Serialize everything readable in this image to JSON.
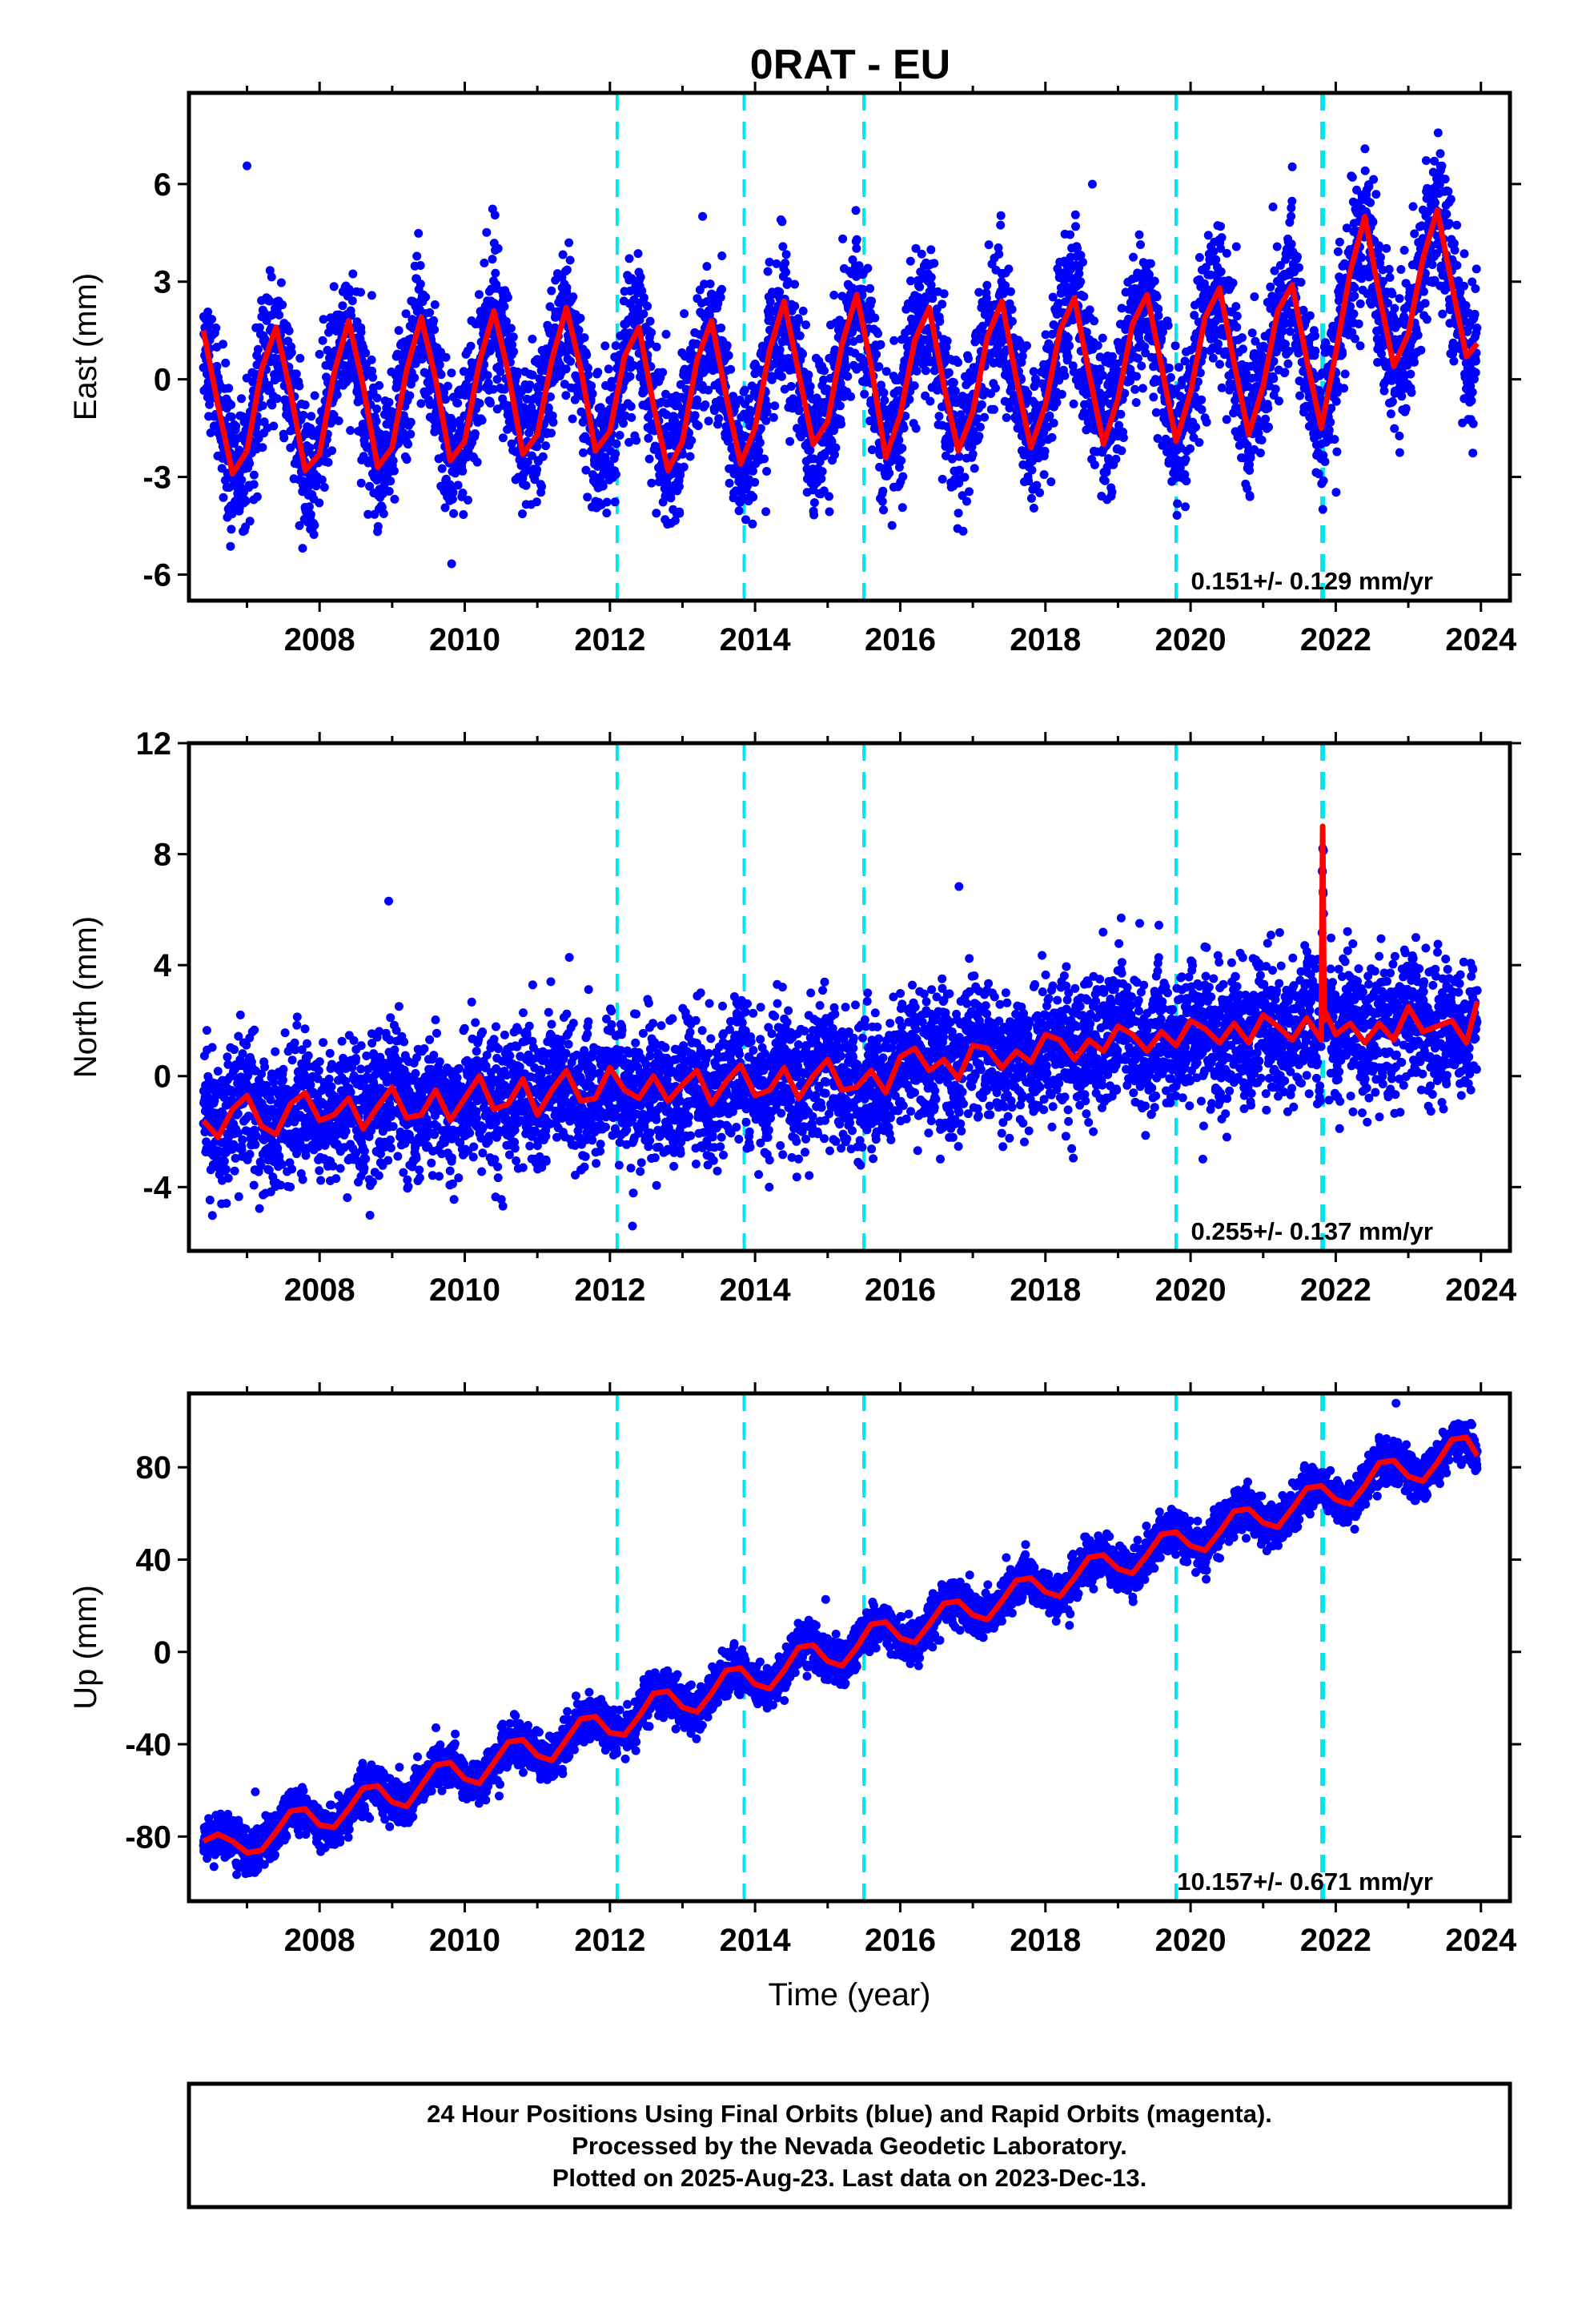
{
  "title": "0RAT - EU",
  "colors": {
    "data_points": "#0000ff",
    "model_fit": "#ff0000",
    "equipment_lines": "#00e5ee",
    "frame": "#000000"
  },
  "chart_data": [
    {
      "type": "scatter",
      "panel": "east",
      "ylabel": "East (mm)",
      "xlabel": "",
      "xlim": [
        2006.2,
        2024.4
      ],
      "ylim": [
        -6.8,
        8.8
      ],
      "x_ticks": [
        2008,
        2010,
        2012,
        2014,
        2016,
        2018,
        2020,
        2022,
        2024
      ],
      "x_tick_labels": [
        "2008",
        "2010",
        "2012",
        "2014",
        "2016",
        "2018",
        "2020",
        "2022",
        "2024"
      ],
      "y_ticks": [
        -6,
        -3,
        0,
        3,
        6
      ],
      "y_tick_labels": [
        "-6",
        "-3",
        "0",
        "3",
        "6"
      ],
      "rate_label": "0.151+/- 0.129 mm/yr",
      "rate_mm_per_yr": 0.151,
      "rate_sigma": 0.129,
      "x_start": 2006.4,
      "x_end": 2023.95,
      "offset_epochs": [
        2012.1,
        2013.85,
        2015.5,
        2019.8,
        2021.82
      ],
      "scatter_sigma_mm": 1.1,
      "series": [
        {
          "name": "Final Orbits (blue)",
          "kind": "points"
        },
        {
          "name": "model",
          "kind": "line",
          "x": [
            2006.4,
            2006.6,
            2006.8,
            2007.0,
            2007.2,
            2007.4,
            2007.6,
            2007.8,
            2008.0,
            2008.2,
            2008.4,
            2008.6,
            2008.8,
            2009.0,
            2009.2,
            2009.4,
            2009.6,
            2009.8,
            2010.0,
            2010.2,
            2010.4,
            2010.6,
            2010.8,
            2011.0,
            2011.2,
            2011.4,
            2011.6,
            2011.8,
            2012.0,
            2012.2,
            2012.4,
            2012.6,
            2012.8,
            2013.0,
            2013.2,
            2013.4,
            2013.6,
            2013.8,
            2014.0,
            2014.2,
            2014.4,
            2014.6,
            2014.8,
            2015.0,
            2015.2,
            2015.4,
            2015.6,
            2015.8,
            2016.0,
            2016.2,
            2016.4,
            2016.6,
            2016.8,
            2017.0,
            2017.2,
            2017.4,
            2017.6,
            2017.8,
            2018.0,
            2018.2,
            2018.4,
            2018.6,
            2018.8,
            2019.0,
            2019.2,
            2019.4,
            2019.6,
            2019.8,
            2020.0,
            2020.2,
            2020.4,
            2020.6,
            2020.8,
            2021.0,
            2021.2,
            2021.4,
            2021.6,
            2021.8,
            2022.0,
            2022.2,
            2022.4,
            2022.6,
            2022.8,
            2023.0,
            2023.2,
            2023.4,
            2023.6,
            2023.8,
            2023.95
          ],
          "y": [
            1.5,
            -0.8,
            -2.9,
            -2.2,
            0.3,
            1.6,
            -0.4,
            -2.8,
            -2.3,
            0.2,
            1.8,
            -0.2,
            -2.7,
            -2.1,
            0.3,
            1.9,
            0.0,
            -2.5,
            -1.9,
            0.5,
            2.1,
            0.2,
            -2.3,
            -1.7,
            0.6,
            2.2,
            0.3,
            -2.2,
            -1.6,
            0.7,
            1.6,
            -0.8,
            -2.8,
            -1.9,
            0.6,
            1.8,
            -0.5,
            -2.6,
            -1.5,
            0.9,
            2.4,
            0.2,
            -2.0,
            -1.3,
            1.1,
            2.6,
            0.4,
            -2.4,
            -1.1,
            1.2,
            2.2,
            -0.2,
            -2.2,
            -1.0,
            1.3,
            2.4,
            0.0,
            -2.1,
            -0.8,
            1.5,
            2.5,
            0.2,
            -2.0,
            -0.6,
            1.7,
            2.6,
            0.4,
            -1.9,
            -0.4,
            1.9,
            2.8,
            0.5,
            -1.7,
            -0.2,
            2.1,
            2.9,
            0.6,
            -1.5,
            0.8,
            3.3,
            5.0,
            2.6,
            0.4,
            1.4,
            3.7,
            5.2,
            2.9,
            0.7,
            1.1
          ]
        }
      ]
    },
    {
      "type": "scatter",
      "panel": "north",
      "ylabel": "North (mm)",
      "xlabel": "",
      "xlim": [
        2006.2,
        2024.4
      ],
      "ylim": [
        -6.3,
        12.0
      ],
      "x_ticks": [
        2008,
        2010,
        2012,
        2014,
        2016,
        2018,
        2020,
        2022,
        2024
      ],
      "x_tick_labels": [
        "2008",
        "2010",
        "2012",
        "2014",
        "2016",
        "2018",
        "2020",
        "2022",
        "2024"
      ],
      "y_ticks": [
        -4,
        0,
        4,
        8,
        12
      ],
      "y_tick_labels": [
        "-4",
        "0",
        "4",
        "8",
        "12"
      ],
      "rate_label": "0.255+/- 0.137 mm/yr",
      "rate_mm_per_yr": 0.255,
      "rate_sigma": 0.137,
      "x_start": 2006.4,
      "x_end": 2023.95,
      "offset_epochs": [
        2012.1,
        2013.85,
        2015.5,
        2019.8,
        2021.82
      ],
      "scatter_sigma_mm": 1.2,
      "series": [
        {
          "name": "Final Orbits (blue)",
          "kind": "points"
        },
        {
          "name": "model",
          "kind": "line",
          "x": [
            2006.4,
            2006.6,
            2006.8,
            2007.0,
            2007.2,
            2007.4,
            2007.6,
            2007.8,
            2008.0,
            2008.2,
            2008.4,
            2008.6,
            2008.8,
            2009.0,
            2009.2,
            2009.4,
            2009.6,
            2009.8,
            2010.0,
            2010.2,
            2010.4,
            2010.6,
            2010.8,
            2011.0,
            2011.2,
            2011.4,
            2011.6,
            2011.8,
            2012.0,
            2012.2,
            2012.4,
            2012.6,
            2012.8,
            2013.0,
            2013.2,
            2013.4,
            2013.6,
            2013.8,
            2014.0,
            2014.2,
            2014.4,
            2014.6,
            2014.8,
            2015.0,
            2015.2,
            2015.4,
            2015.6,
            2015.8,
            2016.0,
            2016.2,
            2016.4,
            2016.6,
            2016.8,
            2017.0,
            2017.2,
            2017.4,
            2017.6,
            2017.8,
            2018.0,
            2018.2,
            2018.4,
            2018.6,
            2018.8,
            2019.0,
            2019.2,
            2019.4,
            2019.6,
            2019.8,
            2020.0,
            2020.2,
            2020.4,
            2020.6,
            2020.8,
            2021.0,
            2021.2,
            2021.4,
            2021.6,
            2021.8,
            2021.82,
            2021.84,
            2021.86,
            2022.0,
            2022.2,
            2022.4,
            2022.6,
            2022.8,
            2023.0,
            2023.2,
            2023.4,
            2023.6,
            2023.8,
            2023.95
          ],
          "y": [
            -1.6,
            -2.2,
            -1.2,
            -0.7,
            -1.8,
            -2.1,
            -1.0,
            -0.6,
            -1.6,
            -1.4,
            -0.8,
            -1.9,
            -1.1,
            -0.4,
            -1.5,
            -1.4,
            -0.5,
            -1.6,
            -0.8,
            0.0,
            -1.2,
            -1.0,
            -0.1,
            -1.4,
            -0.5,
            0.2,
            -0.9,
            -0.8,
            0.3,
            -0.5,
            -0.8,
            0.0,
            -0.9,
            -0.3,
            0.2,
            -1.0,
            -0.2,
            0.4,
            -0.7,
            -0.5,
            0.3,
            -0.8,
            0.0,
            0.6,
            -0.5,
            -0.4,
            0.2,
            -0.6,
            0.7,
            1.0,
            0.2,
            0.6,
            -0.1,
            1.1,
            1.0,
            0.3,
            0.9,
            0.5,
            1.5,
            1.3,
            0.6,
            1.3,
            0.9,
            1.8,
            1.5,
            0.9,
            1.6,
            1.1,
            2.0,
            1.7,
            1.2,
            1.9,
            1.2,
            2.2,
            1.8,
            1.3,
            2.1,
            1.3,
            9.0,
            2.0,
            2.3,
            1.5,
            1.9,
            1.2,
            1.9,
            1.3,
            2.5,
            1.6,
            1.8,
            2.0,
            1.2,
            2.7
          ]
        }
      ]
    },
    {
      "type": "scatter",
      "panel": "up",
      "ylabel": "Up (mm)",
      "xlabel": "Time (year)",
      "xlim": [
        2006.2,
        2024.4
      ],
      "ylim": [
        -108,
        112
      ],
      "x_ticks": [
        2008,
        2010,
        2012,
        2014,
        2016,
        2018,
        2020,
        2022,
        2024
      ],
      "x_tick_labels": [
        "2008",
        "2010",
        "2012",
        "2014",
        "2016",
        "2018",
        "2020",
        "2022",
        "2024"
      ],
      "y_ticks": [
        -80,
        -40,
        0,
        40,
        80
      ],
      "y_tick_labels": [
        "-80",
        "-40",
        "0",
        "40",
        "80"
      ],
      "rate_label": "10.157+/- 0.671 mm/yr",
      "rate_mm_per_yr": 10.157,
      "rate_sigma": 0.671,
      "x_start": 2006.4,
      "x_end": 2023.95,
      "offset_epochs": [
        2012.1,
        2013.85,
        2015.5,
        2019.8,
        2021.82
      ],
      "scatter_sigma_mm": 4.5,
      "series": [
        {
          "name": "Final Orbits (blue)",
          "kind": "points"
        },
        {
          "name": "model",
          "kind": "line",
          "x": [
            2006.4,
            2006.6,
            2006.8,
            2007.0,
            2007.2,
            2007.4,
            2007.6,
            2007.8,
            2008.0,
            2008.2,
            2008.4,
            2008.6,
            2008.8,
            2009.0,
            2009.2,
            2009.4,
            2009.6,
            2009.8,
            2010.0,
            2010.2,
            2010.4,
            2010.6,
            2010.8,
            2011.0,
            2011.2,
            2011.4,
            2011.6,
            2011.8,
            2012.0,
            2012.2,
            2012.4,
            2012.6,
            2012.8,
            2013.0,
            2013.2,
            2013.4,
            2013.6,
            2013.8,
            2014.0,
            2014.2,
            2014.4,
            2014.6,
            2014.8,
            2015.0,
            2015.2,
            2015.4,
            2015.6,
            2015.8,
            2016.0,
            2016.2,
            2016.4,
            2016.6,
            2016.8,
            2017.0,
            2017.2,
            2017.4,
            2017.6,
            2017.8,
            2018.0,
            2018.2,
            2018.4,
            2018.6,
            2018.8,
            2019.0,
            2019.2,
            2019.4,
            2019.6,
            2019.8,
            2020.0,
            2020.2,
            2020.4,
            2020.6,
            2020.8,
            2021.0,
            2021.2,
            2021.4,
            2021.6,
            2021.8,
            2022.0,
            2022.2,
            2022.4,
            2022.6,
            2022.8,
            2023.0,
            2023.2,
            2023.4,
            2023.6,
            2023.8,
            2023.95
          ],
          "y": [
            -82,
            -79,
            -82,
            -87,
            -86,
            -78,
            -69,
            -68,
            -75,
            -76,
            -68,
            -59,
            -58,
            -65,
            -67,
            -58,
            -49,
            -48,
            -55,
            -57,
            -48,
            -39,
            -38,
            -45,
            -47,
            -38,
            -29,
            -28,
            -35,
            -36,
            -28,
            -18,
            -17,
            -24,
            -26,
            -18,
            -8,
            -7,
            -14,
            -16,
            -8,
            2,
            3,
            -4,
            -6,
            2,
            12,
            13,
            6,
            4,
            12,
            21,
            22,
            16,
            14,
            22,
            31,
            32,
            26,
            24,
            32,
            41,
            42,
            36,
            34,
            42,
            51,
            52,
            46,
            44,
            52,
            61,
            62,
            56,
            54,
            62,
            71,
            72,
            66,
            64,
            72,
            82,
            83,
            76,
            74,
            82,
            92,
            93,
            85
          ]
        }
      ]
    }
  ],
  "caption": {
    "line1": "24 Hour Positions Using Final Orbits (blue) and Rapid Orbits (magenta).",
    "line2": "Processed by the Nevada Geodetic Laboratory.",
    "line3": "Plotted on 2025-Aug-23. Last data on 2023-Dec-13."
  }
}
